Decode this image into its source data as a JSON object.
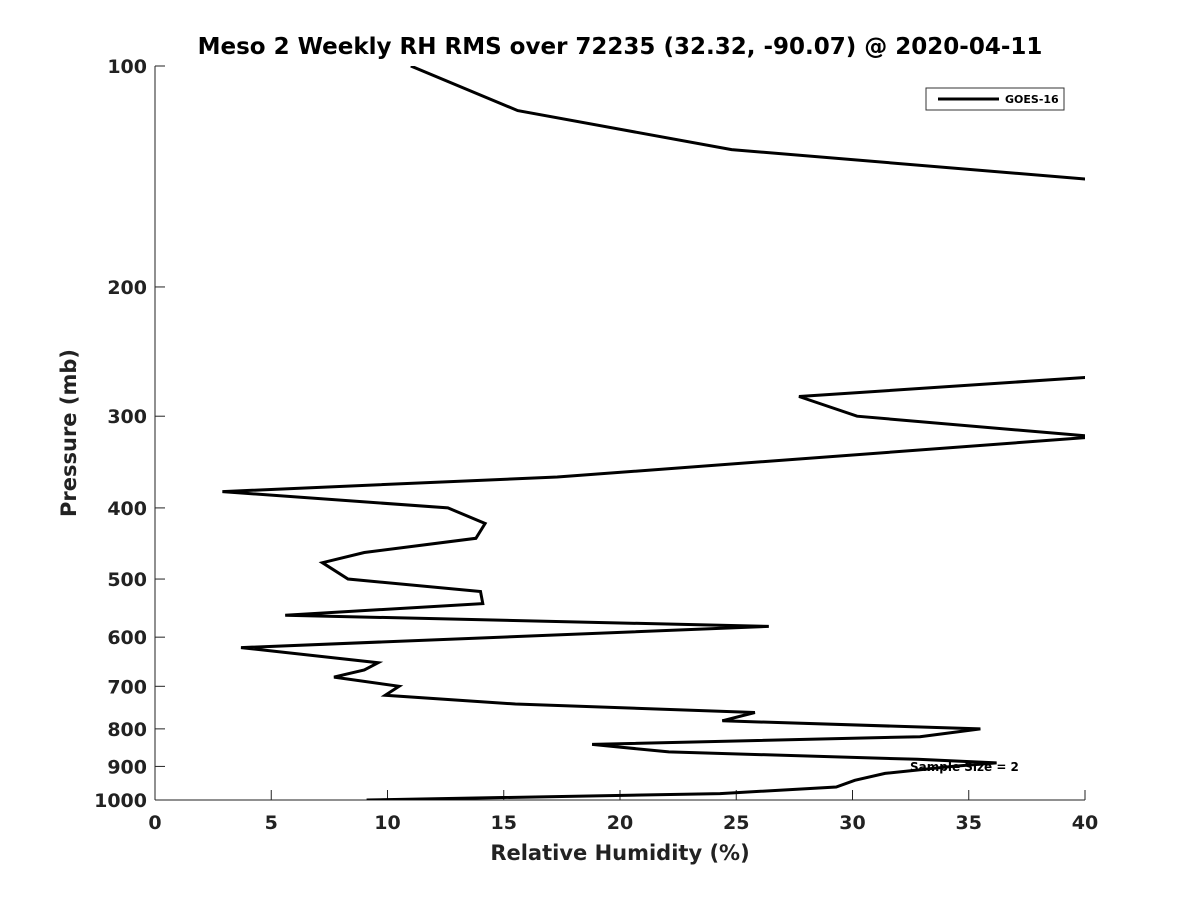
{
  "chart_data": {
    "type": "line",
    "title": "Meso 2 Weekly RH RMS over 72235 (32.32, -90.07) @ 2020-04-11",
    "xlabel": "Relative Humidity (%)",
    "ylabel": "Pressure (mb)",
    "xlim": [
      0,
      40
    ],
    "ylim": [
      100,
      1000
    ],
    "y_scale": "log",
    "y_reversed": true,
    "x_ticks": [
      "0",
      "5",
      "10",
      "15",
      "20",
      "25",
      "30",
      "35",
      "40"
    ],
    "y_ticks": [
      "100",
      "200",
      "300",
      "400",
      "500",
      "600",
      "700",
      "800",
      "900",
      "1000"
    ],
    "grid": false,
    "legend_position": "top-right",
    "annotation": "Sample Size = 2",
    "series": [
      {
        "name": "GOES-16",
        "color": "#000000",
        "points": [
          [
            11.0,
            100
          ],
          [
            15.6,
            115
          ],
          [
            24.8,
            130
          ],
          [
            40.5,
            143
          ],
          [
            40.5,
            265
          ],
          [
            27.7,
            282
          ],
          [
            30.2,
            300
          ],
          [
            40.5,
            320
          ],
          [
            17.3,
            363
          ],
          [
            2.9,
            380
          ],
          [
            12.6,
            400
          ],
          [
            14.2,
            420
          ],
          [
            13.8,
            440
          ],
          [
            9.0,
            460
          ],
          [
            7.2,
            475
          ],
          [
            8.3,
            500
          ],
          [
            14.0,
            520
          ],
          [
            14.1,
            540
          ],
          [
            5.6,
            560
          ],
          [
            26.4,
            580
          ],
          [
            3.7,
            620
          ],
          [
            9.6,
            650
          ],
          [
            9.0,
            665
          ],
          [
            7.7,
            680
          ],
          [
            10.5,
            700
          ],
          [
            9.9,
            720
          ],
          [
            15.5,
            740
          ],
          [
            25.8,
            760
          ],
          [
            24.4,
            780
          ],
          [
            35.5,
            800
          ],
          [
            32.9,
            820
          ],
          [
            18.8,
            840
          ],
          [
            22.1,
            860
          ],
          [
            32.8,
            880
          ],
          [
            36.2,
            890
          ],
          [
            34.3,
            900
          ],
          [
            31.4,
            920
          ],
          [
            30.1,
            940
          ],
          [
            29.3,
            960
          ],
          [
            24.3,
            980
          ],
          [
            9.1,
            1000
          ]
        ]
      }
    ]
  }
}
